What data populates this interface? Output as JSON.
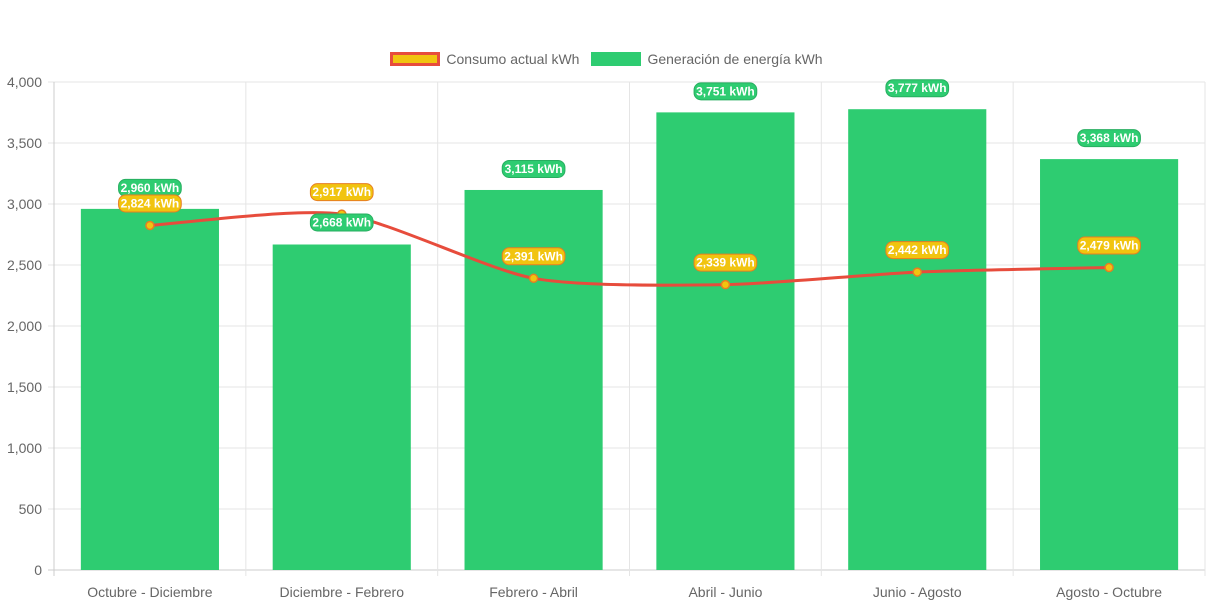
{
  "colors": {
    "bar_fill": "#2ecc71",
    "line_stroke": "#e74c3c",
    "point_fill": "#f1c40f",
    "grid": "#e5e5e5",
    "label_text": "#ffffff"
  },
  "chart_data": {
    "type": "bar",
    "categories": [
      "Octubre - Diciembre",
      "Diciembre - Febrero",
      "Febrero - Abril",
      "Abril - Junio",
      "Junio - Agosto",
      "Agosto - Octubre"
    ],
    "series": [
      {
        "name": "Consumo actual kWh",
        "type": "line",
        "values": [
          2824,
          2917,
          2391,
          2339,
          2442,
          2479
        ],
        "labels": [
          "2,824 kWh",
          "2,917 kWh",
          "2,391 kWh",
          "2,339 kWh",
          "2,442 kWh",
          "2,479 kWh"
        ]
      },
      {
        "name": "Generación de energía kWh",
        "type": "bar",
        "values": [
          2960,
          2668,
          3115,
          3751,
          3777,
          3368
        ],
        "labels": [
          "2,960 kWh",
          "2,668 kWh",
          "3,115 kWh",
          "3,751 kWh",
          "3,777 kWh",
          "3,368 kWh"
        ]
      }
    ],
    "ylim": [
      0,
      4000
    ],
    "yticks": [
      0,
      500,
      1000,
      1500,
      2000,
      2500,
      3000,
      3500,
      4000
    ],
    "ytick_labels": [
      "0",
      "500",
      "1,000",
      "1,500",
      "2,000",
      "2,500",
      "3,000",
      "3,500",
      "4,000"
    ],
    "grid": true,
    "legend_position": "top-center"
  }
}
